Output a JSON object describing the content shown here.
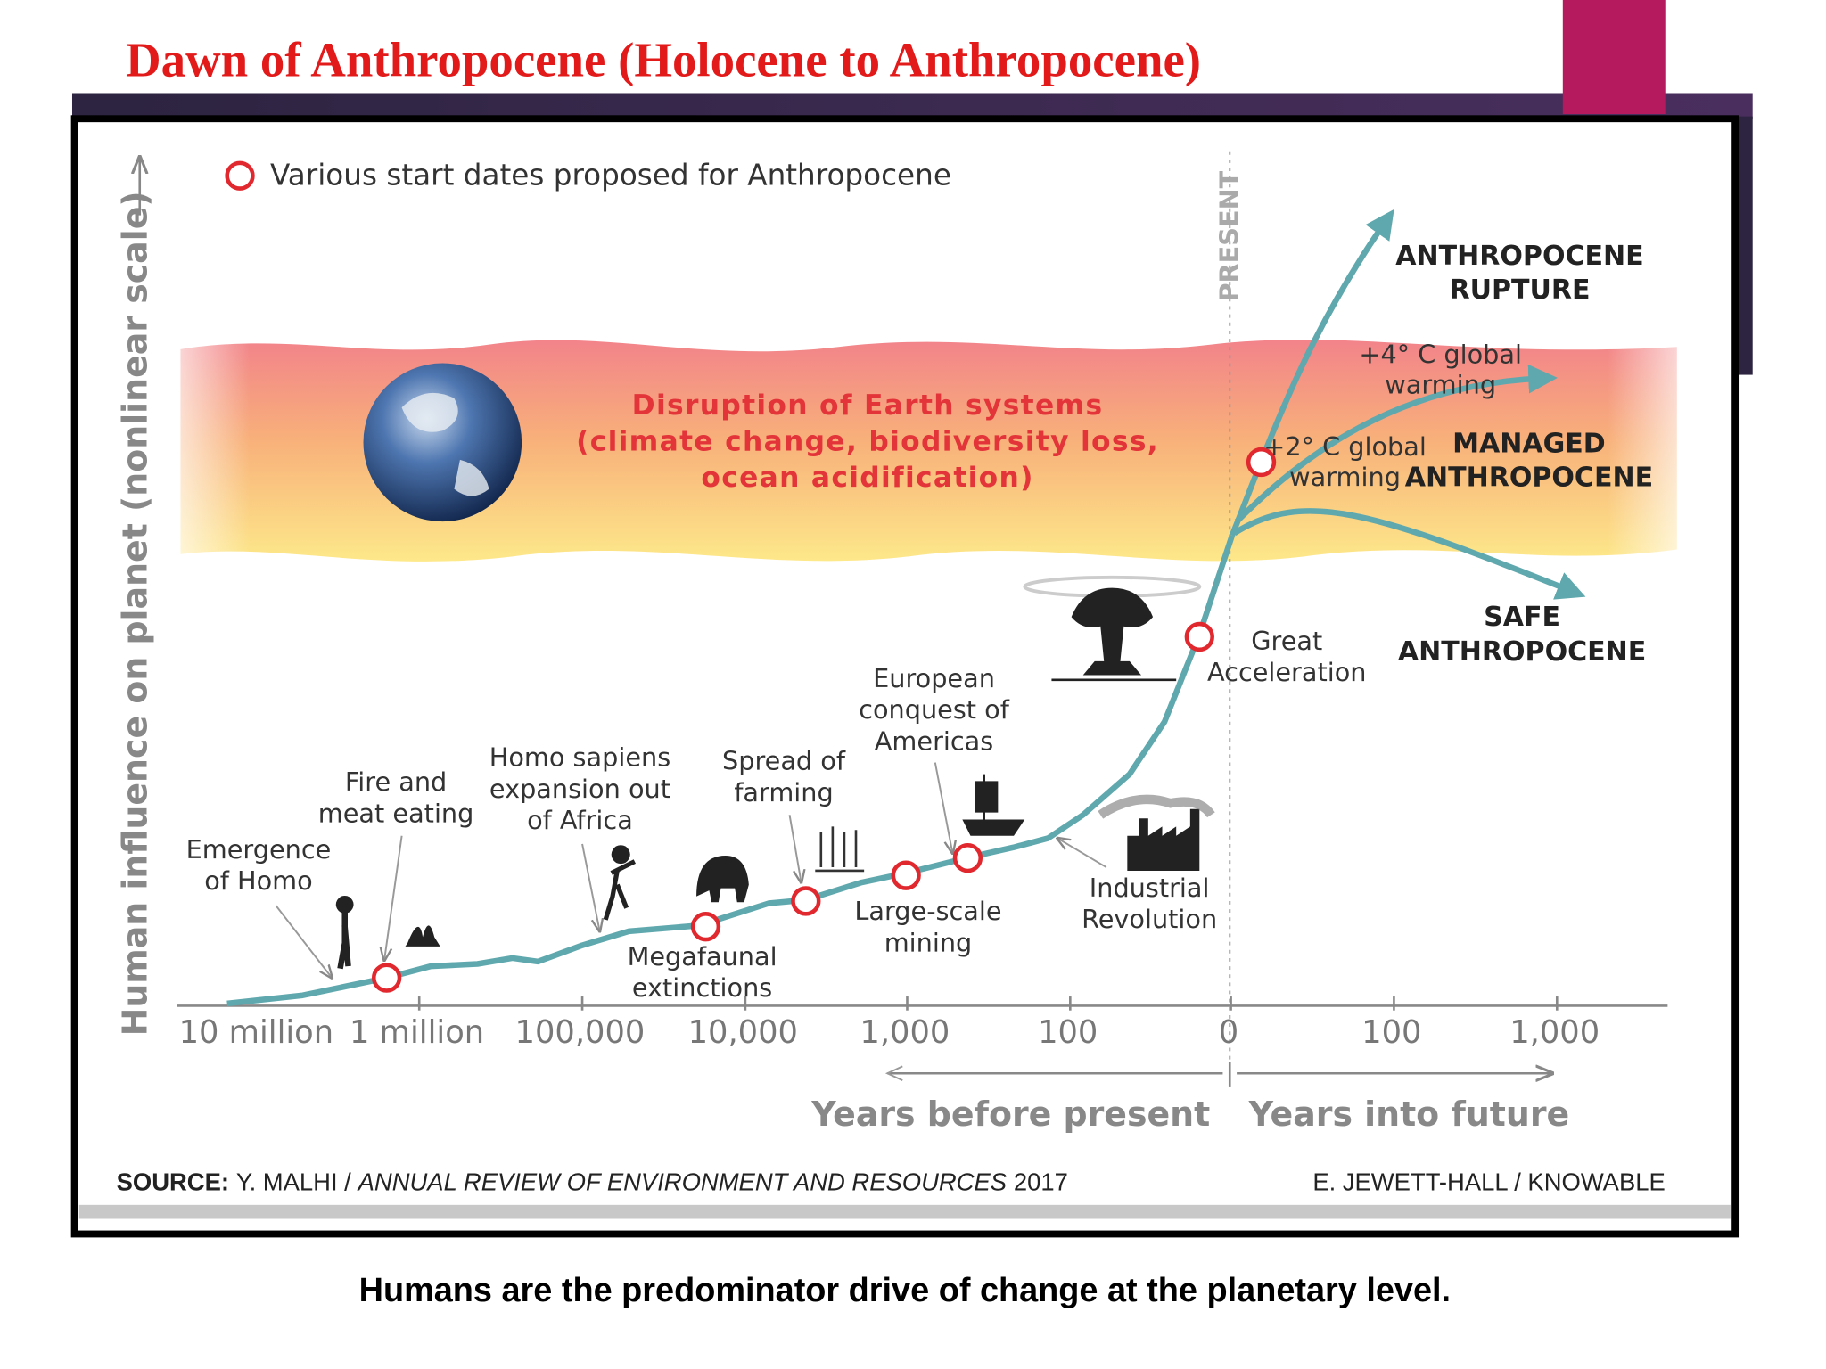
{
  "title": "Dawn of Anthropocene (Holocene to Anthropocene)",
  "caption": "Humans are the predominator drive of change at the planetary level.",
  "figure": {
    "legend": "Various start dates proposed for Anthropocene",
    "y_axis_label": "Human influence on planet (nonlinear scale)",
    "present_label": "PRESENT",
    "banner": [
      "Disruption of Earth systems",
      "(climate change, biodiversity loss,",
      "ocean acidification)"
    ],
    "x_ticks": [
      "10 million",
      "1 million",
      "100,000",
      "10,000",
      "1,000",
      "100",
      "0",
      "100",
      "1,000"
    ],
    "x_axis": {
      "past": "Years before present",
      "future": "Years into future"
    },
    "annotations": {
      "emergence_of_homo": [
        "Emergence",
        "of Homo"
      ],
      "fire": [
        "Fire and",
        "meat eating"
      ],
      "homo_sapiens": [
        "Homo sapiens",
        "expansion out",
        "of Africa"
      ],
      "megafaunal": [
        "Megafaunal",
        "extinctions"
      ],
      "farming": [
        "Spread of",
        "farming"
      ],
      "mining": [
        "Large-scale",
        "mining"
      ],
      "european": [
        "European",
        "conquest of",
        "Americas"
      ],
      "industrial": [
        "Industrial",
        "Revolution"
      ],
      "great_acceleration": [
        "Great",
        "Acceleration"
      ],
      "plus_two": [
        "+2° C global",
        "warming"
      ],
      "plus_four": [
        "+4° C global",
        "warming"
      ],
      "rupture": [
        "ANTHROPOCENE",
        "RUPTURE"
      ],
      "managed": [
        "MANAGED",
        "ANTHROPOCENE"
      ],
      "safe": [
        "SAFE",
        "ANTHROPOCENE"
      ]
    },
    "source": {
      "label": "SOURCE:",
      "authors": "Y. MALHI /",
      "journal": "ANNUAL REVIEW OF ENVIRONMENT AND RESOURCES",
      "year": "2017"
    },
    "credit": "E. JEWETT-HALL / KNOWABLE"
  }
}
